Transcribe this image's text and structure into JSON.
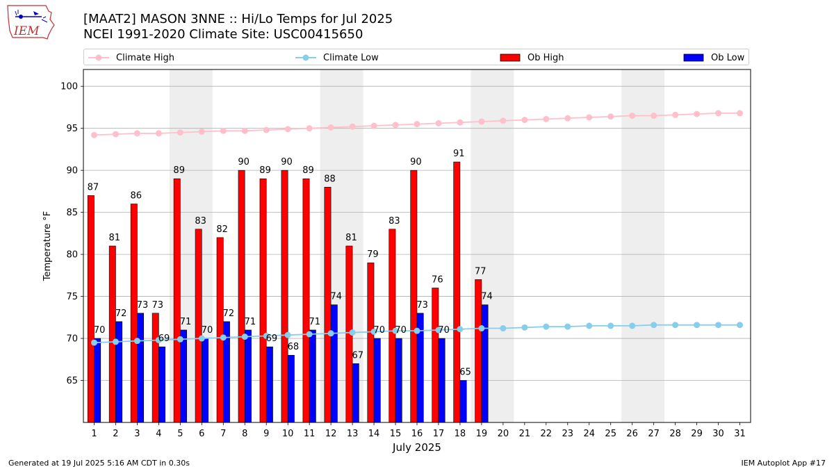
{
  "header": {
    "title_line1": "[MAAT2] MASON 3NNE :: Hi/Lo Temps for Jul 2025",
    "title_line2": "NCEI 1991-2020 Climate Site: USC00415650"
  },
  "logo": {
    "text": "IEM"
  },
  "footer": {
    "left": "Generated at 19 Jul 2025 5:16 AM CDT in 0.30s",
    "right": "IEM Autoplot App #17"
  },
  "chart_data": {
    "type": "bar",
    "xlabel": "July 2025",
    "ylabel": "Temperature °F",
    "ylim": [
      60,
      102
    ],
    "yticks": [
      65,
      70,
      75,
      80,
      85,
      90,
      95,
      100
    ],
    "grid": true,
    "legend_placement": "top",
    "days": [
      1,
      2,
      3,
      4,
      5,
      6,
      7,
      8,
      9,
      10,
      11,
      12,
      13,
      14,
      15,
      16,
      17,
      18,
      19,
      20,
      21,
      22,
      23,
      24,
      25,
      26,
      27,
      28,
      29,
      30,
      31
    ],
    "weekend_shading": [
      [
        5,
        6
      ],
      [
        12,
        13
      ],
      [
        19,
        20
      ],
      [
        26,
        27
      ]
    ],
    "series": [
      {
        "name": "Climate High",
        "kind": "line",
        "color": "#ffc0cb",
        "values": [
          94.2,
          94.3,
          94.4,
          94.4,
          94.5,
          94.6,
          94.7,
          94.7,
          94.8,
          94.9,
          95.0,
          95.1,
          95.2,
          95.3,
          95.4,
          95.5,
          95.6,
          95.7,
          95.8,
          95.9,
          96.0,
          96.1,
          96.2,
          96.3,
          96.4,
          96.5,
          96.5,
          96.6,
          96.7,
          96.8,
          96.8
        ]
      },
      {
        "name": "Climate Low",
        "kind": "line",
        "color": "#87ceeb",
        "values": [
          69.5,
          69.6,
          69.7,
          69.8,
          69.9,
          70.0,
          70.1,
          70.2,
          70.3,
          70.4,
          70.5,
          70.6,
          70.7,
          70.8,
          70.9,
          70.9,
          71.0,
          71.1,
          71.2,
          71.2,
          71.3,
          71.4,
          71.4,
          71.5,
          71.5,
          71.5,
          71.6,
          71.6,
          71.6,
          71.6,
          71.6
        ]
      },
      {
        "name": "Ob High",
        "kind": "bar",
        "color": "#ff0000",
        "values": [
          87,
          81,
          86,
          73,
          89,
          83,
          82,
          90,
          89,
          90,
          89,
          88,
          81,
          79,
          83,
          90,
          76,
          91,
          77
        ],
        "labels": [
          "87",
          "81",
          "86",
          "73",
          "89",
          "83",
          "82",
          "90",
          "89",
          "90",
          "89",
          "88",
          "81",
          "79",
          "83",
          "90",
          "76",
          "91",
          "77"
        ]
      },
      {
        "name": "Ob Low",
        "kind": "bar",
        "color": "#0000ff",
        "values": [
          70,
          72,
          73,
          69,
          71,
          70,
          72,
          71,
          69,
          68,
          71,
          74,
          67,
          70,
          70,
          73,
          70,
          65,
          74
        ],
        "labels": [
          "70",
          "72",
          "73",
          "69",
          "71",
          "70",
          "72",
          "71",
          "69",
          "68",
          "71",
          "74",
          "67",
          "70",
          "70",
          "73",
          "70",
          "65",
          "74"
        ]
      }
    ]
  }
}
